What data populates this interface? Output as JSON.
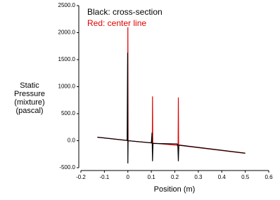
{
  "chart_data": {
    "type": "line",
    "y_label": [
      "Static",
      "Pressure",
      "(mixture)",
      "(pascal)"
    ],
    "x_label": "Position (m)",
    "annotations": [
      {
        "text": "Black: cross-section",
        "color": "#000000"
      },
      {
        "text": "Red: center line",
        "color": "#e00000"
      }
    ],
    "xlim": [
      -0.2,
      0.6
    ],
    "xticks": [
      -0.2,
      -0.1,
      0,
      0.1,
      0.2,
      0.3,
      0.4,
      0.5,
      0.6
    ],
    "ylim": [
      -500,
      2500
    ],
    "yticks": [
      {
        "value": -500,
        "label": "-500.0"
      },
      {
        "value": 0,
        "label": "0.0"
      },
      {
        "value": 500,
        "label": "500.0"
      },
      {
        "value": 1000,
        "label": "1000.0"
      },
      {
        "value": 1500,
        "label": "1500.0"
      },
      {
        "value": 2000,
        "label": "2000.0"
      },
      {
        "value": 2500,
        "label": "2500.0"
      }
    ],
    "series": [
      {
        "color": "#e00000",
        "x": [
          -0.13,
          -0.001,
          0,
          0.001,
          0.104,
          0.105,
          0.106,
          0.214,
          0.215,
          0.216,
          0.5
        ],
        "values": [
          65,
          2,
          2100,
          0,
          -42,
          820,
          -45,
          -85,
          800,
          -85,
          -235
        ]
      },
      {
        "color": "#000000",
        "x": [
          -0.13,
          -0.003,
          -0.001,
          0,
          0.001,
          0.1,
          0.103,
          0.105,
          0.107,
          0.21,
          0.213,
          0.215,
          0.217,
          0.5
        ],
        "values": [
          65,
          5,
          1630,
          -420,
          0,
          -40,
          150,
          -380,
          -50,
          -60,
          -110,
          -380,
          -80,
          -230
        ]
      }
    ]
  }
}
